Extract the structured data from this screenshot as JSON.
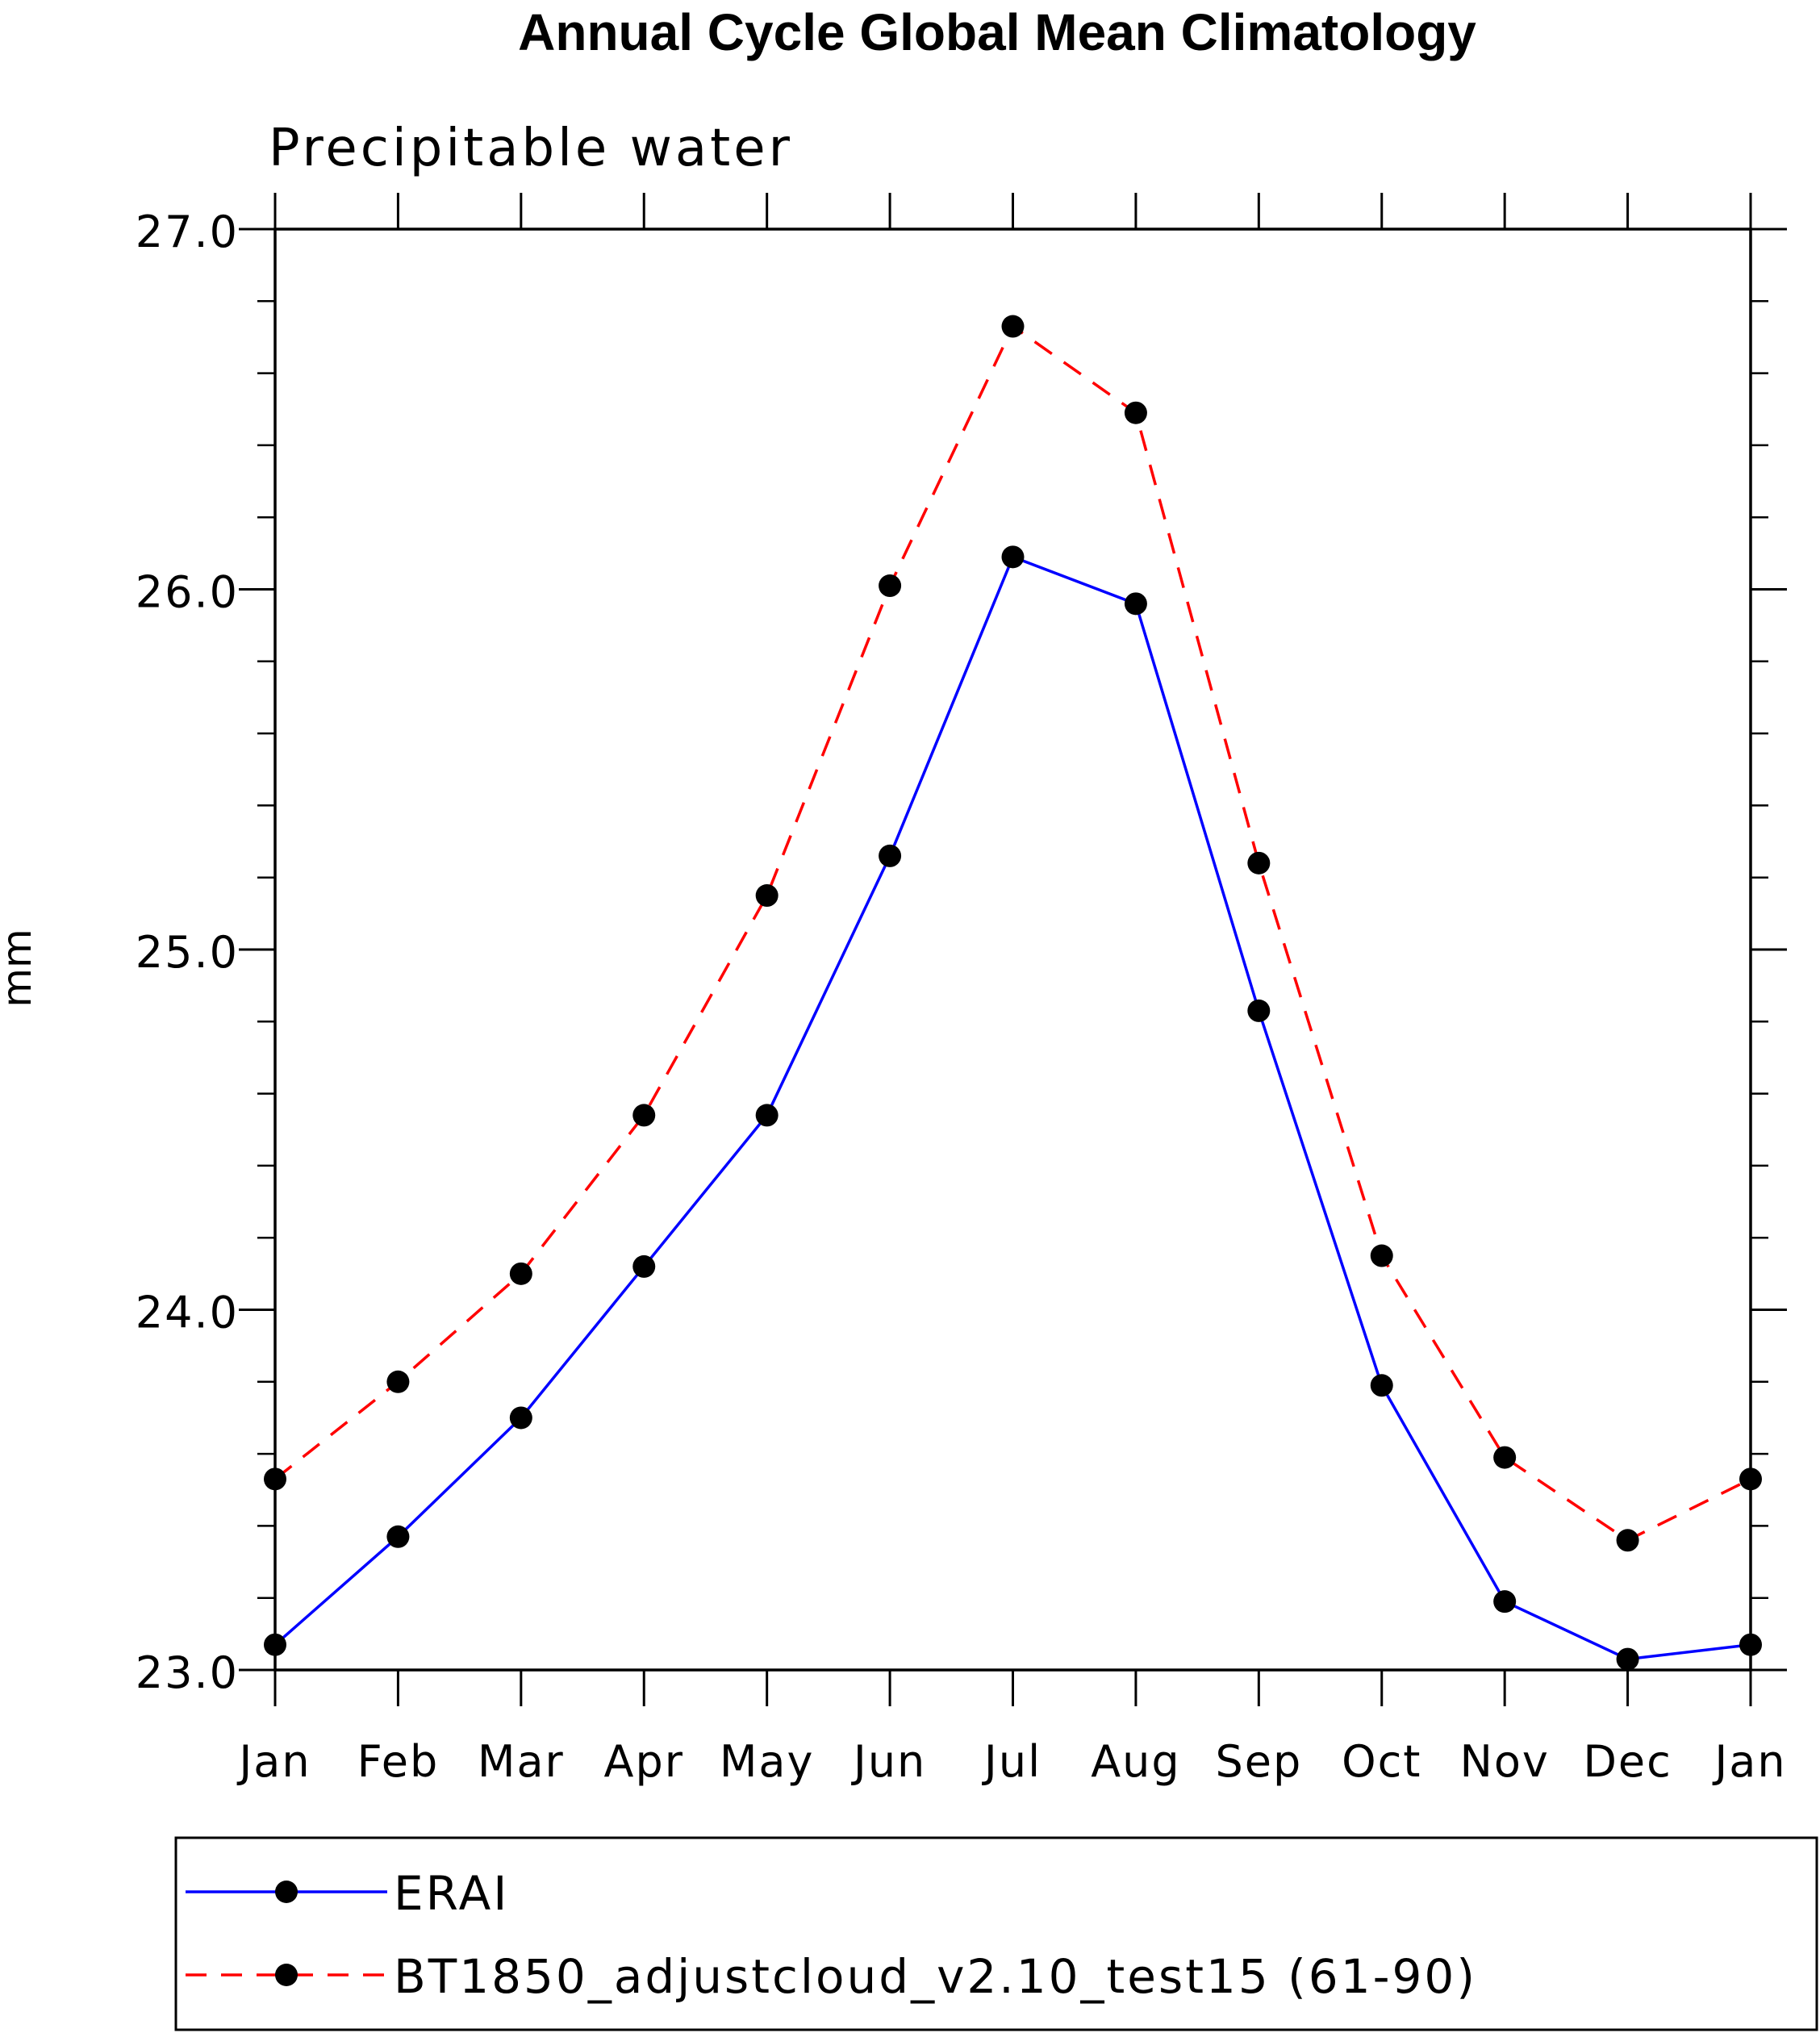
{
  "chart_data": {
    "type": "line",
    "title": "Annual Cycle Global Mean Climatology",
    "subtitle": "Precipitable water",
    "xlabel": "",
    "ylabel": "mm",
    "categories": [
      "Jan",
      "Feb",
      "Mar",
      "Apr",
      "May",
      "Jun",
      "Jul",
      "Aug",
      "Sep",
      "Oct",
      "Nov",
      "Dec",
      "Jan"
    ],
    "ylim": [
      23.0,
      27.0
    ],
    "yticks": [
      "23.0",
      "24.0",
      "25.0",
      "26.0",
      "27.0"
    ],
    "grid": false,
    "legend_position": "bottom",
    "series": [
      {
        "name": "ERAI",
        "color": "#0000ff",
        "line_style": "solid",
        "marker": "filled-circle",
        "values": [
          23.07,
          23.37,
          23.7,
          24.12,
          24.54,
          25.26,
          26.09,
          25.96,
          24.83,
          23.79,
          23.19,
          23.03,
          23.07
        ]
      },
      {
        "name": "BT1850_adjustcloud_v2.10_test15 (61-90)",
        "color": "#ff0000",
        "line_style": "dashed",
        "marker": "filled-circle",
        "values": [
          23.53,
          23.8,
          24.1,
          24.54,
          25.15,
          26.01,
          26.73,
          26.49,
          25.24,
          24.15,
          23.59,
          23.36,
          23.53
        ]
      }
    ]
  }
}
